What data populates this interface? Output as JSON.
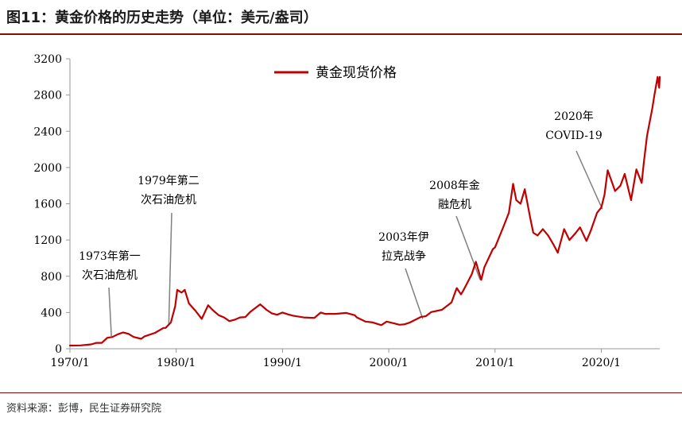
{
  "figure_title": "图11：黄金价格的历史走势（单位：美元/盎司）",
  "source_note": "资料来源：彭博，民生证券研究院",
  "colors": {
    "series": "#c00000",
    "accent": "#8a0b0b",
    "annotation_arrow": "#808080"
  },
  "chart_data": {
    "type": "line",
    "title": "",
    "xlabel": "",
    "ylabel": "",
    "ylim": [
      0,
      3200
    ],
    "xlim": [
      1970.0,
      2025.5
    ],
    "y_ticks": [
      0,
      400,
      800,
      1200,
      1600,
      2000,
      2400,
      2800,
      3200
    ],
    "x_ticks": [
      {
        "label": "1970/1",
        "value": 1970.0
      },
      {
        "label": "1980/1",
        "value": 1980.0
      },
      {
        "label": "1990/1",
        "value": 1990.0
      },
      {
        "label": "2000/1",
        "value": 2000.0
      },
      {
        "label": "2010/1",
        "value": 2010.0
      },
      {
        "label": "2020/1",
        "value": 2020.0
      }
    ],
    "legend": {
      "position": "top-center"
    },
    "series": [
      {
        "name": "黄金现货价格",
        "points": [
          [
            1970.0,
            35
          ],
          [
            1971.0,
            37
          ],
          [
            1972.0,
            48
          ],
          [
            1972.5,
            65
          ],
          [
            1973.0,
            65
          ],
          [
            1973.5,
            120
          ],
          [
            1974.0,
            130
          ],
          [
            1974.5,
            160
          ],
          [
            1975.0,
            180
          ],
          [
            1975.5,
            165
          ],
          [
            1976.0,
            130
          ],
          [
            1976.7,
            110
          ],
          [
            1977.0,
            135
          ],
          [
            1978.0,
            175
          ],
          [
            1978.8,
            230
          ],
          [
            1979.0,
            230
          ],
          [
            1979.5,
            290
          ],
          [
            1979.9,
            470
          ],
          [
            1980.1,
            650
          ],
          [
            1980.5,
            620
          ],
          [
            1980.8,
            650
          ],
          [
            1981.2,
            500
          ],
          [
            1981.8,
            420
          ],
          [
            1982.4,
            330
          ],
          [
            1983.0,
            480
          ],
          [
            1983.5,
            420
          ],
          [
            1984.0,
            370
          ],
          [
            1984.5,
            345
          ],
          [
            1985.0,
            305
          ],
          [
            1985.5,
            320
          ],
          [
            1986.0,
            345
          ],
          [
            1986.5,
            350
          ],
          [
            1987.0,
            410
          ],
          [
            1987.9,
            490
          ],
          [
            1988.5,
            430
          ],
          [
            1989.0,
            390
          ],
          [
            1989.5,
            375
          ],
          [
            1990.0,
            400
          ],
          [
            1990.5,
            380
          ],
          [
            1991.0,
            365
          ],
          [
            1992.0,
            345
          ],
          [
            1993.0,
            340
          ],
          [
            1993.6,
            400
          ],
          [
            1994.0,
            385
          ],
          [
            1995.0,
            385
          ],
          [
            1996.0,
            395
          ],
          [
            1996.8,
            370
          ],
          [
            1997.0,
            345
          ],
          [
            1997.8,
            300
          ],
          [
            1998.5,
            290
          ],
          [
            1999.3,
            260
          ],
          [
            1999.8,
            300
          ],
          [
            2000.5,
            280
          ],
          [
            2001.0,
            265
          ],
          [
            2001.5,
            270
          ],
          [
            2002.0,
            290
          ],
          [
            2002.5,
            320
          ],
          [
            2003.0,
            350
          ],
          [
            2003.5,
            360
          ],
          [
            2004.0,
            405
          ],
          [
            2005.0,
            430
          ],
          [
            2005.9,
            510
          ],
          [
            2006.4,
            670
          ],
          [
            2006.8,
            600
          ],
          [
            2007.0,
            640
          ],
          [
            2007.8,
            820
          ],
          [
            2008.2,
            960
          ],
          [
            2008.7,
            760
          ],
          [
            2009.0,
            900
          ],
          [
            2009.8,
            1100
          ],
          [
            2010.0,
            1120
          ],
          [
            2010.8,
            1350
          ],
          [
            2011.3,
            1500
          ],
          [
            2011.7,
            1820
          ],
          [
            2012.0,
            1640
          ],
          [
            2012.4,
            1600
          ],
          [
            2012.8,
            1760
          ],
          [
            2013.3,
            1450
          ],
          [
            2013.6,
            1280
          ],
          [
            2014.0,
            1250
          ],
          [
            2014.5,
            1320
          ],
          [
            2015.0,
            1250
          ],
          [
            2015.5,
            1150
          ],
          [
            2015.9,
            1060
          ],
          [
            2016.5,
            1320
          ],
          [
            2017.0,
            1200
          ],
          [
            2017.6,
            1280
          ],
          [
            2018.0,
            1340
          ],
          [
            2018.6,
            1190
          ],
          [
            2019.0,
            1300
          ],
          [
            2019.6,
            1500
          ],
          [
            2020.0,
            1560
          ],
          [
            2020.3,
            1700
          ],
          [
            2020.6,
            1970
          ],
          [
            2021.0,
            1840
          ],
          [
            2021.3,
            1740
          ],
          [
            2021.8,
            1800
          ],
          [
            2022.2,
            1930
          ],
          [
            2022.8,
            1640
          ],
          [
            2023.3,
            1980
          ],
          [
            2023.8,
            1830
          ],
          [
            2024.0,
            2050
          ],
          [
            2024.3,
            2350
          ],
          [
            2024.8,
            2650
          ],
          [
            2025.0,
            2800
          ],
          [
            2025.3,
            3000
          ],
          [
            2025.45,
            2880
          ],
          [
            2025.5,
            3000
          ]
        ]
      }
    ],
    "annotations": [
      {
        "lines": [
          "1973年第一",
          "次石油危机"
        ],
        "point": [
          1973.9,
          140
        ]
      },
      {
        "lines": [
          "1979年第二",
          "次石油危机"
        ],
        "point": [
          1979.3,
          270
        ]
      },
      {
        "lines": [
          "2003年伊",
          "拉克战争"
        ],
        "point": [
          2003.2,
          330
        ]
      },
      {
        "lines": [
          "2008年金",
          "融危机"
        ],
        "point": [
          2008.6,
          760
        ]
      },
      {
        "lines": [
          "2020年",
          "COVID-19"
        ],
        "point": [
          2020.1,
          1540
        ]
      }
    ]
  }
}
